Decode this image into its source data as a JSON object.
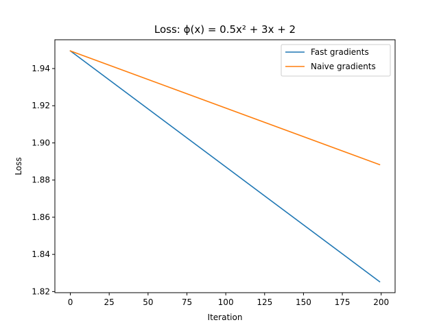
{
  "chart_data": {
    "type": "line",
    "title": "Loss: ϕ(x) = 0.5x² + 3x + 2",
    "xlabel": "Iteration",
    "ylabel": "Loss",
    "xlim": [
      -9.95,
      208.95
    ],
    "ylim": [
      1.8194,
      1.9555
    ],
    "xticks": [
      0,
      25,
      50,
      75,
      100,
      125,
      150,
      175,
      200
    ],
    "yticks": [
      1.82,
      1.84,
      1.86,
      1.88,
      1.9,
      1.92,
      1.94
    ],
    "grid": false,
    "legend_position": "top-right",
    "series": [
      {
        "name": "Fast gradients",
        "color": "#1f77b4",
        "x": [
          0,
          199
        ],
        "y": [
          1.9495,
          1.8253
        ]
      },
      {
        "name": "Naive gradients",
        "color": "#ff7f0e",
        "x": [
          0,
          199
        ],
        "y": [
          1.9495,
          1.8883
        ]
      }
    ]
  }
}
